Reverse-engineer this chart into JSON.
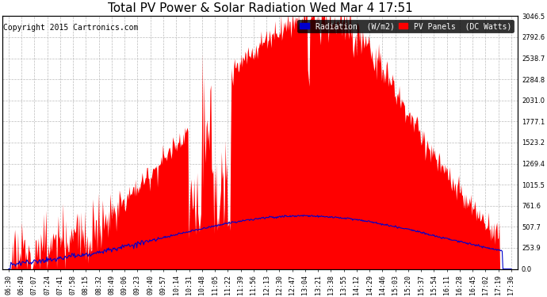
{
  "title": "Total PV Power & Solar Radiation Wed Mar 4 17:51",
  "copyright": "Copyright 2015 Cartronics.com",
  "legend_radiation": "Radiation  (W/m2)",
  "legend_pv": "PV Panels  (DC Watts)",
  "ylabel_right_values": [
    0.0,
    253.9,
    507.7,
    761.6,
    1015.5,
    1269.4,
    1523.2,
    1777.1,
    2031.0,
    2284.8,
    2538.7,
    2792.6,
    3046.5
  ],
  "x_tick_labels": [
    "06:30",
    "06:49",
    "07:07",
    "07:24",
    "07:41",
    "07:58",
    "08:15",
    "08:32",
    "08:49",
    "09:06",
    "09:23",
    "09:40",
    "09:57",
    "10:14",
    "10:31",
    "10:48",
    "11:05",
    "11:22",
    "11:39",
    "11:56",
    "12:13",
    "12:30",
    "12:47",
    "13:04",
    "13:21",
    "13:38",
    "13:55",
    "14:12",
    "14:29",
    "14:46",
    "15:03",
    "15:20",
    "15:37",
    "15:54",
    "16:11",
    "16:28",
    "16:45",
    "17:02",
    "17:19",
    "17:36"
  ],
  "bg_color": "#ffffff",
  "grid_color": "#bbbbbb",
  "pv_color": "#ff0000",
  "radiation_color": "#0000cc",
  "title_fontsize": 11,
  "tick_fontsize": 6,
  "legend_fontsize": 7,
  "copyright_fontsize": 7,
  "y_max": 3046.5
}
